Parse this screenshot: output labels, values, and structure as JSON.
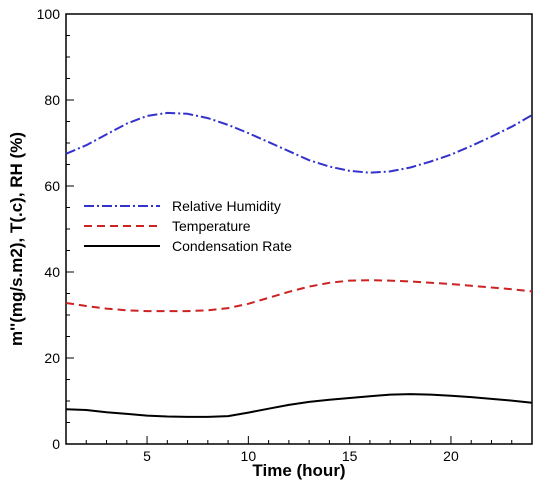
{
  "chart_data": {
    "type": "line",
    "xlabel": "Time (hour)",
    "ylabel": "m''(mg/s.m2), T(.c), RH (%)",
    "xlim": [
      1,
      24
    ],
    "ylim": [
      0,
      100
    ],
    "x_ticks": [
      5,
      10,
      15,
      20
    ],
    "y_ticks": [
      0,
      20,
      40,
      60,
      80,
      100
    ],
    "grid": false,
    "legend_position": "center-left",
    "series": [
      {
        "name": "Relative Humidity",
        "color": "#3333cc",
        "style": "dash-dot",
        "x": [
          1,
          2,
          3,
          4,
          5,
          6,
          7,
          8,
          9,
          10,
          11,
          12,
          13,
          14,
          15,
          16,
          17,
          18,
          19,
          20,
          21,
          22,
          23,
          24
        ],
        "y": [
          67.5,
          69.5,
          72,
          74.5,
          76.3,
          77,
          76.8,
          75.8,
          74.2,
          72.3,
          70.2,
          68.1,
          66,
          64.5,
          63.5,
          63.1,
          63.4,
          64.3,
          65.7,
          67.3,
          69.3,
          71.5,
          73.8,
          76.5
        ]
      },
      {
        "name": "Temperature",
        "color": "#cc2222",
        "style": "dashed",
        "x": [
          1,
          2,
          3,
          4,
          5,
          6,
          7,
          8,
          9,
          10,
          11,
          12,
          13,
          14,
          15,
          16,
          17,
          18,
          19,
          20,
          21,
          22,
          23,
          24
        ],
        "y": [
          32.8,
          32.1,
          31.5,
          31.1,
          30.9,
          30.9,
          30.9,
          31.1,
          31.6,
          32.6,
          34,
          35.4,
          36.6,
          37.5,
          38,
          38.1,
          38,
          37.8,
          37.5,
          37.2,
          36.8,
          36.4,
          36,
          35.5
        ]
      },
      {
        "name": "Condensation Rate",
        "color": "#000000",
        "style": "solid",
        "x": [
          1,
          2,
          3,
          4,
          5,
          6,
          7,
          8,
          9,
          10,
          11,
          12,
          13,
          14,
          15,
          16,
          17,
          18,
          19,
          20,
          21,
          22,
          23,
          24
        ],
        "y": [
          8.1,
          7.9,
          7.4,
          7,
          6.6,
          6.4,
          6.3,
          6.3,
          6.5,
          7.3,
          8.2,
          9.1,
          9.8,
          10.3,
          10.7,
          11.1,
          11.5,
          11.6,
          11.5,
          11.2,
          10.9,
          10.5,
          10.1,
          9.6
        ]
      }
    ]
  }
}
